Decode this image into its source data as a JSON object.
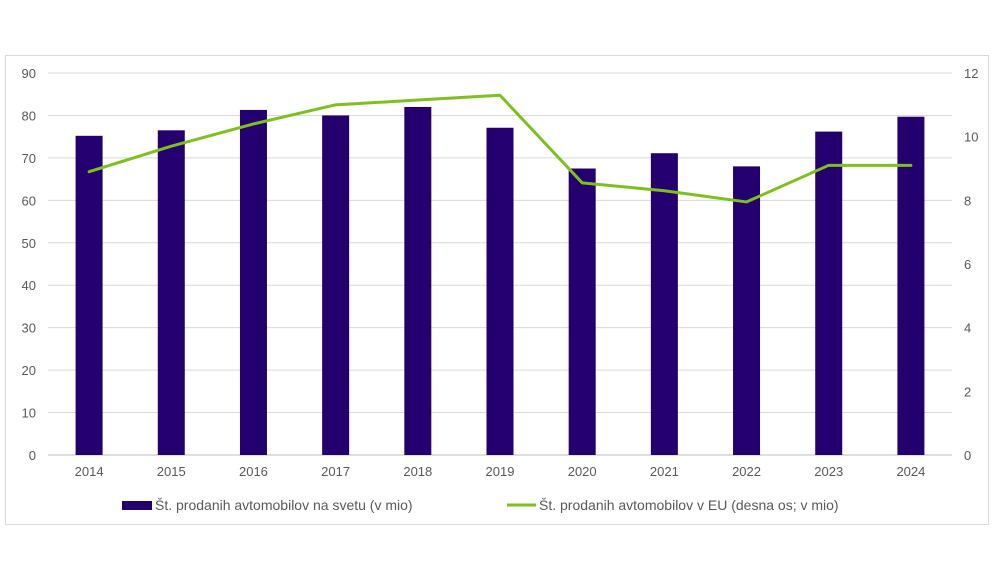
{
  "chart_data": {
    "type": "bar",
    "categories": [
      "2014",
      "2015",
      "2016",
      "2017",
      "2018",
      "2019",
      "2020",
      "2021",
      "2022",
      "2023",
      "2024"
    ],
    "series": [
      {
        "name": "Št. prodanih avtomobilov na svetu (v mio)",
        "type": "bar",
        "axis": "left",
        "color": "#24006e",
        "values": [
          75.2,
          76.5,
          81.3,
          80.0,
          82.0,
          77.1,
          67.5,
          71.1,
          68.0,
          76.2,
          79.7
        ]
      },
      {
        "name": "Št. prodanih avtomobilov v EU (desna os; v mio)",
        "type": "line",
        "axis": "right",
        "color": "#7fbf1f",
        "values": [
          8.9,
          9.7,
          10.4,
          11.0,
          11.15,
          11.3,
          8.55,
          8.3,
          7.95,
          9.1,
          9.1
        ]
      }
    ],
    "y_left": {
      "min": 0,
      "max": 90,
      "ticks": [
        "0",
        "10",
        "20",
        "30",
        "40",
        "50",
        "60",
        "70",
        "80",
        "90"
      ]
    },
    "y_right": {
      "min": 0,
      "max": 12,
      "ticks": [
        "0",
        "2",
        "4",
        "6",
        "8",
        "10",
        "12"
      ]
    },
    "grid": true,
    "legend_position": "bottom"
  }
}
